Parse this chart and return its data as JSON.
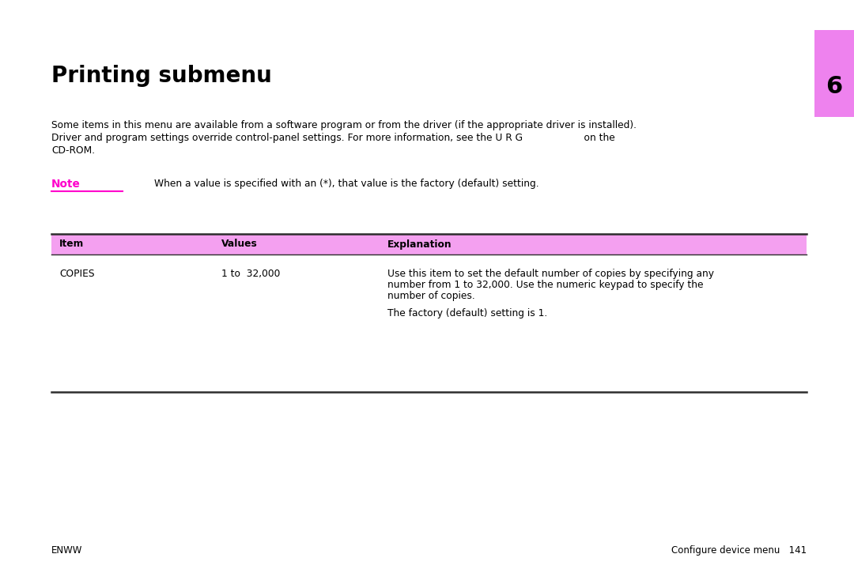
{
  "title": "Printing submenu",
  "chapter_number": "6",
  "tab_color": "#ee82ee",
  "body_text_line1": "Some items in this menu are available from a software program or from the driver (if the appropriate driver is installed).",
  "body_text_line2": "Driver and program settings override control-panel settings. For more information, see the U R G                    on the",
  "body_text_line3": "CD-ROM.",
  "note_label": "Note",
  "note_color": "#ff00cc",
  "note_text": "When a value is specified with an (*), that value is the factory (default) setting.",
  "table_header_bg": "#f4a0f0",
  "table_col1_header": "Item",
  "table_col2_header": "Values",
  "table_col3_header": "Explanation",
  "table_row1_col1": "COPIES",
  "table_row1_col2": "1 to  32,000",
  "table_row1_col3_line1": "Use this item to set the default number of copies by specifying any",
  "table_row1_col3_line2": "number from 1 to 32,000. Use the numeric keypad to specify the",
  "table_row1_col3_line3": "number of copies.",
  "table_row1_col3_line4": "",
  "table_row1_col3_line5": "The factory (default) setting is 1.",
  "footer_left": "ENWW",
  "footer_right": "Configure device menu   141",
  "bg_color": "#ffffff",
  "text_color": "#000000",
  "title_fontsize": 20,
  "body_fontsize": 8.8,
  "note_fontsize": 8.8,
  "table_fontsize": 8.8,
  "footer_fontsize": 8.5
}
